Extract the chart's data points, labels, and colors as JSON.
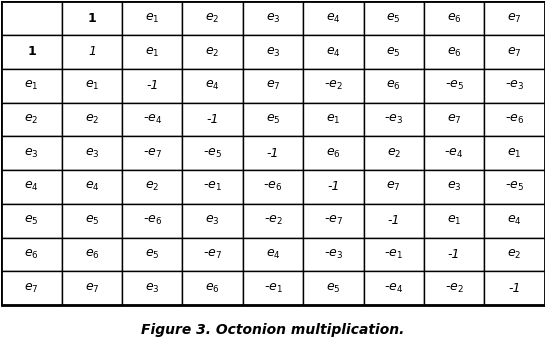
{
  "title": "Figure 3. Octonion multiplication.",
  "header_row": [
    "",
    "1",
    "e₁",
    "e₂",
    "e₃",
    "e₄",
    "e₅",
    "e₆",
    "e₇"
  ],
  "rows": [
    [
      "1",
      "1",
      "e₁",
      "e₂",
      "e₃",
      "e₄",
      "e₅",
      "e₆",
      "e₇"
    ],
    [
      "e₁",
      "e₁",
      "-1",
      "e₄",
      "e₇",
      "-e₂",
      "e₆",
      "-e₅",
      "-e₃"
    ],
    [
      "e₂",
      "e₂",
      "-e₄",
      "-1",
      "e₅",
      "e₁",
      "-e₃",
      "e₇",
      "-e₆"
    ],
    [
      "e₃",
      "e₃",
      "-e₇",
      "-e₅",
      "-1",
      "e₆",
      "e₂",
      "-e₄",
      "e₁"
    ],
    [
      "e₄",
      "e₄",
      "e₂",
      "-e₁",
      "-e₆",
      "-1",
      "e₇",
      "e₃",
      "-e₅"
    ],
    [
      "e₅",
      "e₅",
      "-e₆",
      "e₃",
      "-e₂",
      "-e₇",
      "-1",
      "e₁",
      "e₄"
    ],
    [
      "e₆",
      "e₆",
      "e₅",
      "-e₇",
      "e₄",
      "-e₃",
      "-e₁",
      "-1",
      "e₂"
    ],
    [
      "e₇",
      "e₇",
      "e₃",
      "e₆",
      "-e₁",
      "e₅",
      "-e₄",
      "-e₂",
      "-1"
    ]
  ],
  "bg_color": "#ffffff",
  "cell_color": "#ffffff",
  "header_bold": true,
  "border_color": "#000000",
  "text_color": "#000000",
  "title_color": "#000000",
  "figsize": [
    5.46,
    3.6
  ],
  "dpi": 100
}
